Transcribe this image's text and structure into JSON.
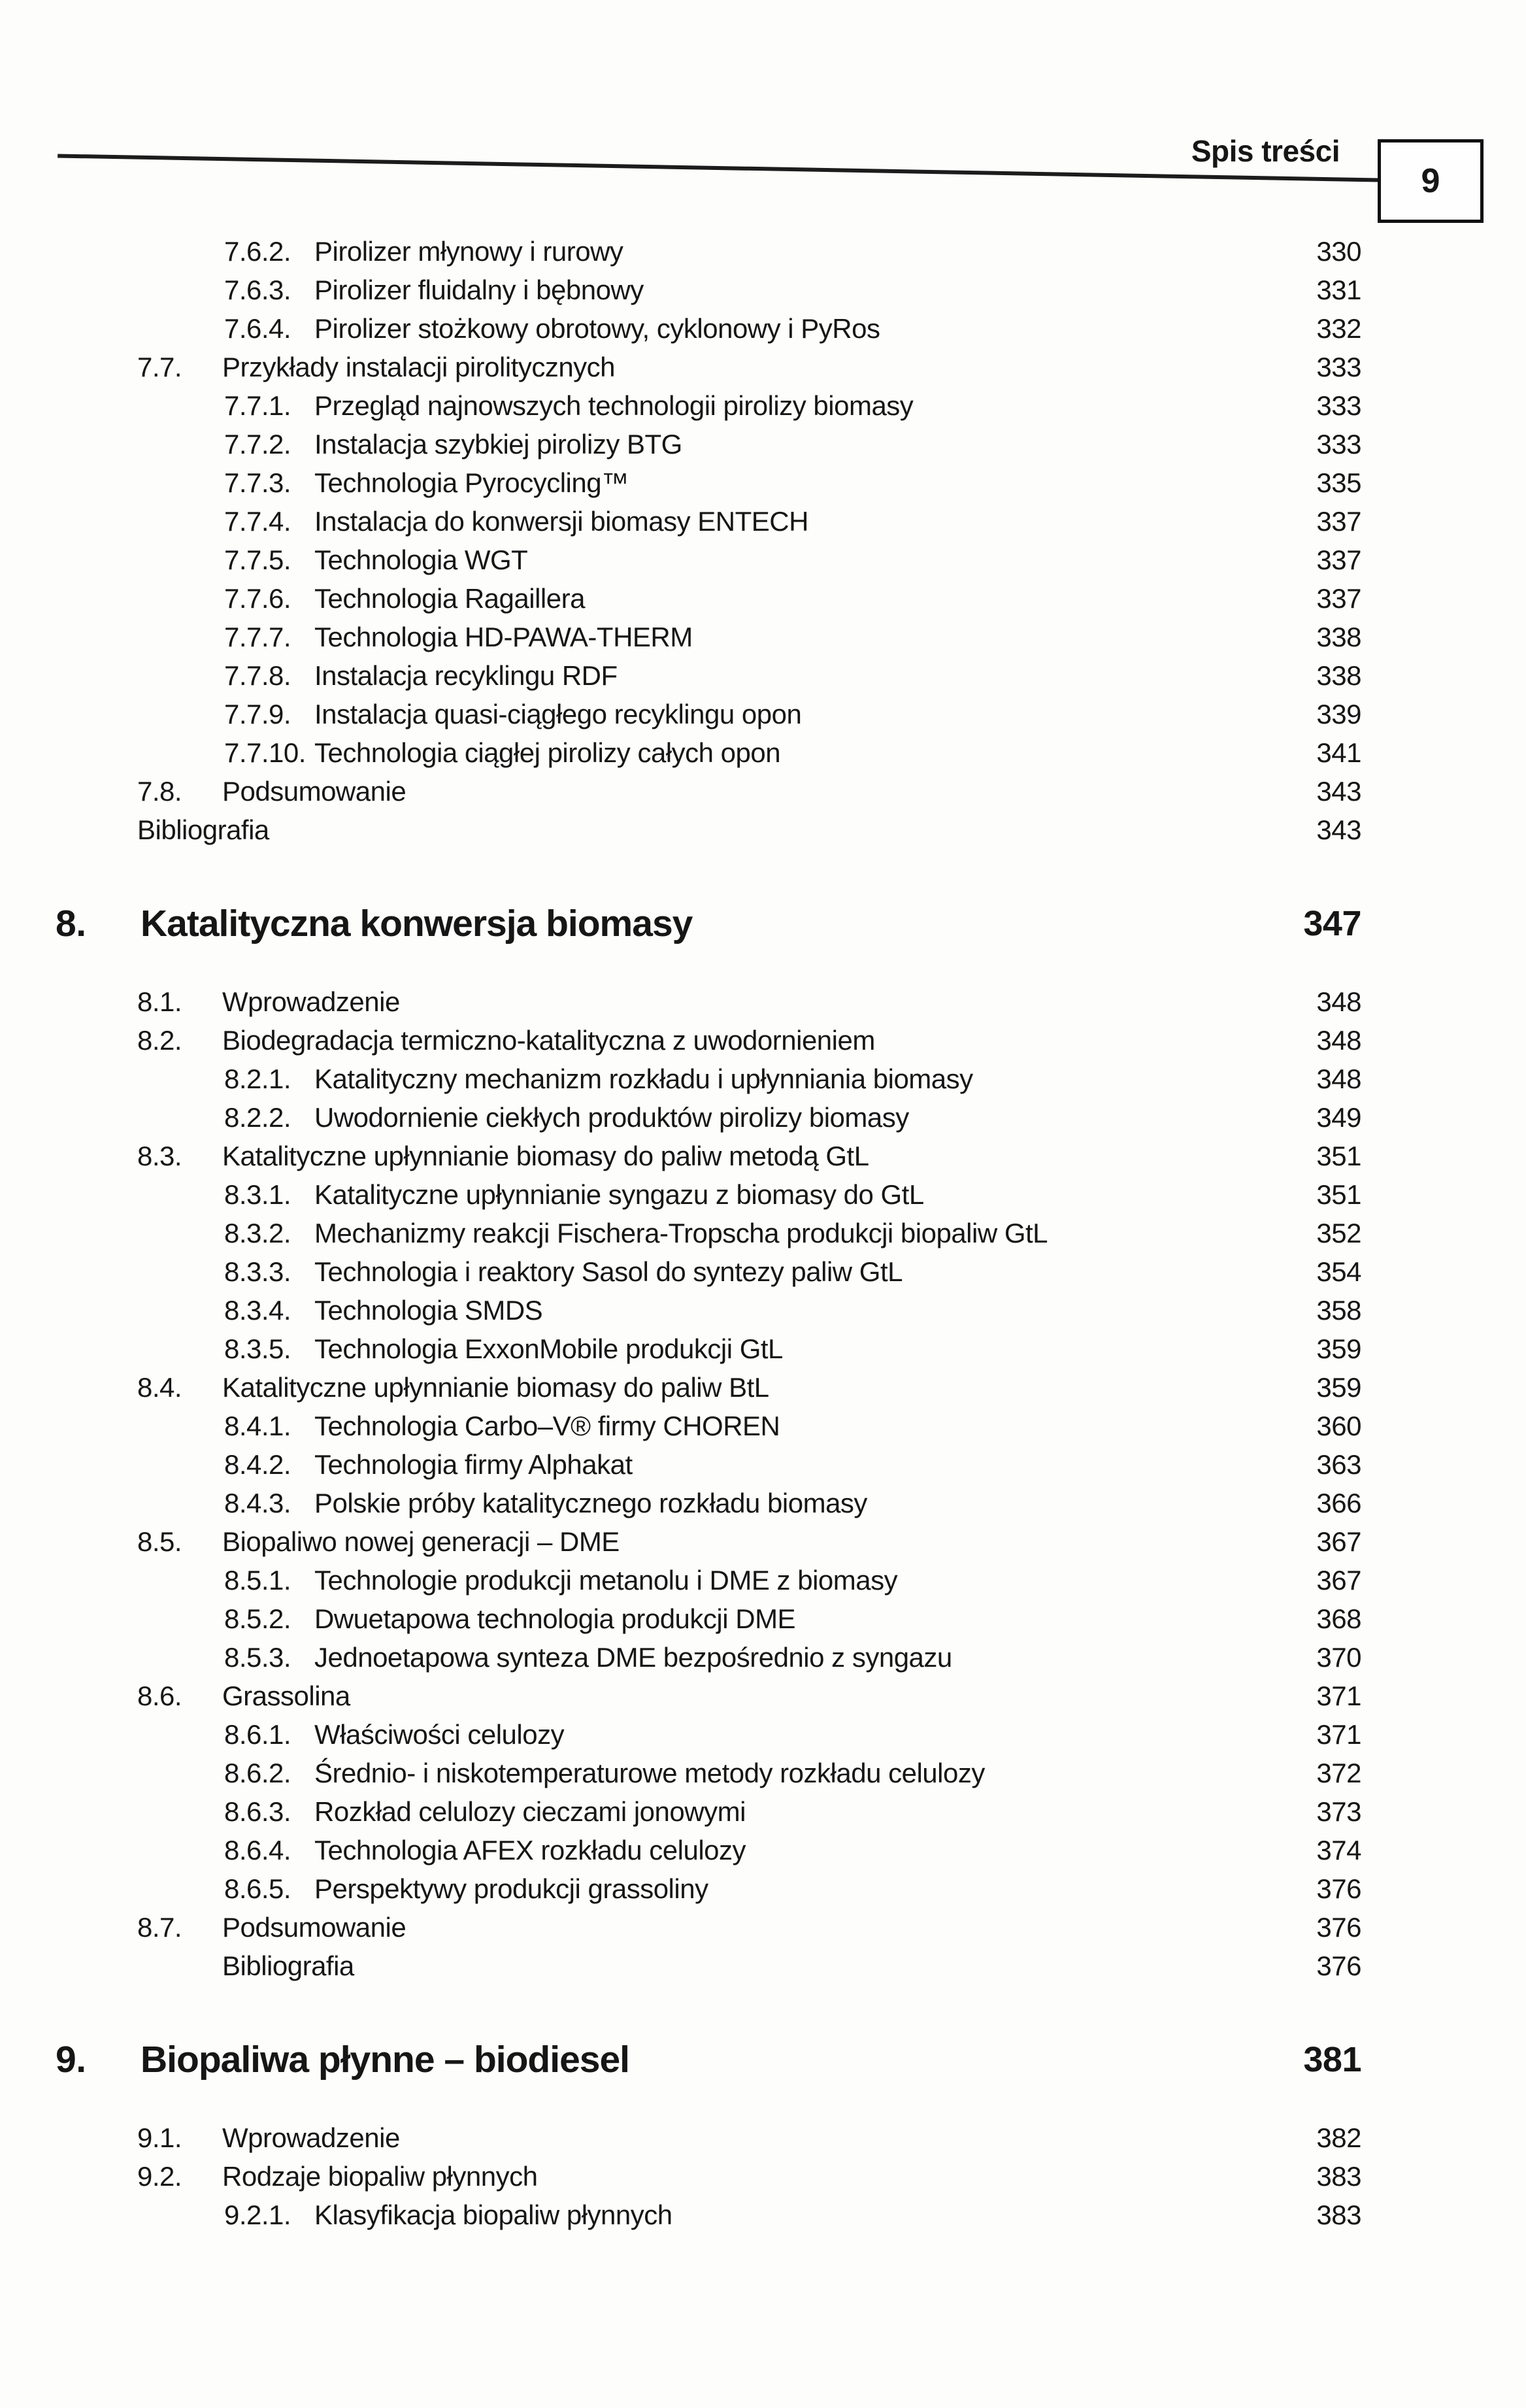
{
  "header": {
    "title": "Spis treści",
    "page_number": "9"
  },
  "colors": {
    "text": "#161616",
    "rule": "#1c1c1c",
    "background": "#fdfdfc"
  },
  "toc": {
    "entries": [
      {
        "kind": "l3",
        "num": "7.6.2.",
        "label": "Pirolizer młynowy i rurowy",
        "page": "330"
      },
      {
        "kind": "l3",
        "num": "7.6.3.",
        "label": "Pirolizer fluidalny i bębnowy",
        "page": "331"
      },
      {
        "kind": "l3",
        "num": "7.6.4.",
        "label": "Pirolizer stożkowy obrotowy, cyklonowy i PyRos",
        "page": "332"
      },
      {
        "kind": "l2",
        "num": "7.7.",
        "label": "Przykłady instalacji pirolitycznych",
        "page": "333"
      },
      {
        "kind": "l3",
        "num": "7.7.1.",
        "label": "Przegląd najnowszych technologii pirolizy biomasy",
        "page": "333"
      },
      {
        "kind": "l3",
        "num": "7.7.2.",
        "label": "Instalacja szybkiej pirolizy BTG",
        "page": "333"
      },
      {
        "kind": "l3",
        "num": "7.7.3.",
        "label": "Technologia Pyrocycling™",
        "page": "335"
      },
      {
        "kind": "l3",
        "num": "7.7.4.",
        "label": "Instalacja do konwersji biomasy ENTECH",
        "page": "337"
      },
      {
        "kind": "l3",
        "num": "7.7.5.",
        "label": "Technologia WGT",
        "page": "337"
      },
      {
        "kind": "l3",
        "num": "7.7.6.",
        "label": "Technologia Ragaillera",
        "page": "337"
      },
      {
        "kind": "l3",
        "num": "7.7.7.",
        "label": "Technologia HD-PAWA-THERM",
        "page": "338"
      },
      {
        "kind": "l3",
        "num": "7.7.8.",
        "label": "Instalacja recyklingu RDF",
        "page": "338"
      },
      {
        "kind": "l3",
        "num": "7.7.9.",
        "label": "Instalacja quasi-ciągłego recyklingu opon",
        "page": "339"
      },
      {
        "kind": "l3",
        "num": "7.7.10.",
        "label": "Technologia ciągłej pirolizy całych opon",
        "page": "341"
      },
      {
        "kind": "l2",
        "num": "7.8.",
        "label": "Podsumowanie",
        "page": "343"
      },
      {
        "kind": "b2",
        "num": "",
        "label": "Bibliografia",
        "page": "343"
      },
      {
        "kind": "h1",
        "num": "8.",
        "label": "Katalityczna konwersja biomasy",
        "page": "347"
      },
      {
        "kind": "l2",
        "num": "8.1.",
        "label": "Wprowadzenie",
        "page": "348"
      },
      {
        "kind": "l2",
        "num": "8.2.",
        "label": "Biodegradacja termiczno-katalityczna z uwodornieniem",
        "page": "348"
      },
      {
        "kind": "l3",
        "num": "8.2.1.",
        "label": "Katalityczny mechanizm rozkładu i upłynniania biomasy",
        "page": "348"
      },
      {
        "kind": "l3",
        "num": "8.2.2.",
        "label": "Uwodornienie ciekłych produktów pirolizy biomasy",
        "page": "349"
      },
      {
        "kind": "l2",
        "num": "8.3.",
        "label": "Katalityczne upłynnianie biomasy do paliw metodą GtL",
        "page": "351"
      },
      {
        "kind": "l3",
        "num": "8.3.1.",
        "label": "Katalityczne upłynnianie syngazu z biomasy do GtL",
        "page": "351"
      },
      {
        "kind": "l3",
        "num": "8.3.2.",
        "label": "Mechanizmy reakcji Fischera-Tropscha produkcji biopaliw GtL",
        "page": "352"
      },
      {
        "kind": "l3",
        "num": "8.3.3.",
        "label": "Technologia i reaktory Sasol do syntezy paliw GtL",
        "page": "354"
      },
      {
        "kind": "l3",
        "num": "8.3.4.",
        "label": "Technologia SMDS",
        "page": "358"
      },
      {
        "kind": "l3",
        "num": "8.3.5.",
        "label": "Technologia ExxonMobile produkcji GtL",
        "page": "359"
      },
      {
        "kind": "l2",
        "num": "8.4.",
        "label": "Katalityczne upłynnianie biomasy do paliw BtL",
        "page": "359"
      },
      {
        "kind": "l3",
        "num": "8.4.1.",
        "label": "Technologia Carbo–V® firmy CHOREN",
        "page": "360"
      },
      {
        "kind": "l3",
        "num": "8.4.2.",
        "label": "Technologia firmy Alphakat",
        "page": "363"
      },
      {
        "kind": "l3",
        "num": "8.4.3.",
        "label": "Polskie próby katalitycznego rozkładu biomasy",
        "page": "366"
      },
      {
        "kind": "l2",
        "num": "8.5.",
        "label": "Biopaliwo nowej generacji – DME",
        "page": "367"
      },
      {
        "kind": "l3",
        "num": "8.5.1.",
        "label": "Technologie produkcji metanolu i DME z biomasy",
        "page": "367"
      },
      {
        "kind": "l3",
        "num": "8.5.2.",
        "label": "Dwuetapowa technologia produkcji DME",
        "page": "368"
      },
      {
        "kind": "l3",
        "num": "8.5.3.",
        "label": "Jednoetapowa synteza DME bezpośrednio z syngazu",
        "page": "370"
      },
      {
        "kind": "l2",
        "num": "8.6.",
        "label": "Grassolina",
        "page": "371"
      },
      {
        "kind": "l3",
        "num": "8.6.1.",
        "label": "Właściwości celulozy",
        "page": "371"
      },
      {
        "kind": "l3",
        "num": "8.6.2.",
        "label": "Średnio- i niskotemperaturowe metody rozkładu celulozy",
        "page": "372"
      },
      {
        "kind": "l3",
        "num": "8.6.3.",
        "label": "Rozkład celulozy cieczami jonowymi",
        "page": "373"
      },
      {
        "kind": "l3",
        "num": "8.6.4.",
        "label": "Technologia AFEX rozkładu celulozy",
        "page": "374"
      },
      {
        "kind": "l3",
        "num": "8.6.5.",
        "label": "Perspektywy produkcji grassoliny",
        "page": "376"
      },
      {
        "kind": "l2",
        "num": "8.7.",
        "label": "Podsumowanie",
        "page": "376"
      },
      {
        "kind": "b3",
        "num": "",
        "label": "Bibliografia",
        "page": "376"
      },
      {
        "kind": "h1",
        "num": "9.",
        "label": "Biopaliwa płynne – biodiesel",
        "page": "381"
      },
      {
        "kind": "l2",
        "num": "9.1.",
        "label": "Wprowadzenie",
        "page": "382"
      },
      {
        "kind": "l2",
        "num": "9.2.",
        "label": "Rodzaje biopaliw płynnych",
        "page": "383"
      },
      {
        "kind": "l3",
        "num": "9.2.1.",
        "label": "Klasyfikacja biopaliw płynnych",
        "page": "383"
      }
    ]
  }
}
